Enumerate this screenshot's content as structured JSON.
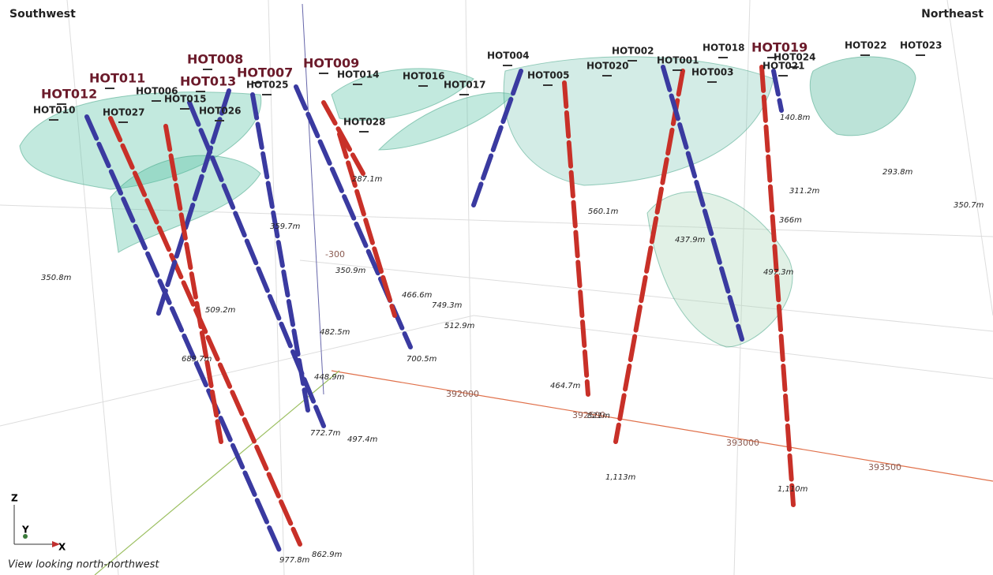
{
  "corners": {
    "left": "Southwest",
    "right": "Northeast"
  },
  "holes": [
    "HOT012",
    "HOT011",
    "HOT010",
    "HOT006",
    "HOT027",
    "HOT015",
    "HOT026",
    "HOT008",
    "HOT013",
    "HOT025",
    "HOT007",
    "HOT009",
    "HOT014",
    "HOT016",
    "HOT028",
    "HOT017",
    "HOT004",
    "HOT005",
    "HOT002",
    "HOT020",
    "HOT001",
    "HOT003",
    "HOT018",
    "HOT019",
    "HOT024",
    "HOT021",
    "HOT022",
    "HOT023"
  ],
  "depths": [
    "350.8m",
    "689.7m",
    "509.2m",
    "448.9m",
    "482.5m",
    "350.9m",
    "359.7m",
    "287.1m",
    "466.6m",
    "700.5m",
    "749.3m",
    "512.9m",
    "772.7m",
    "497.4m",
    "977.8m",
    "862.9m",
    "464.7m",
    "821m",
    "560.1m",
    "1,113m",
    "437.9m",
    "497.3m",
    "366m",
    "311.2m",
    "293.8m",
    "350.7m",
    "140.8m",
    "1,110m"
  ],
  "grid_labels": [
    "392000",
    "392500",
    "393000",
    "393500",
    "-300"
  ],
  "axes": {
    "z": "Z",
    "y": "Y",
    "x": "X"
  },
  "caption": "View looking north-northwest"
}
